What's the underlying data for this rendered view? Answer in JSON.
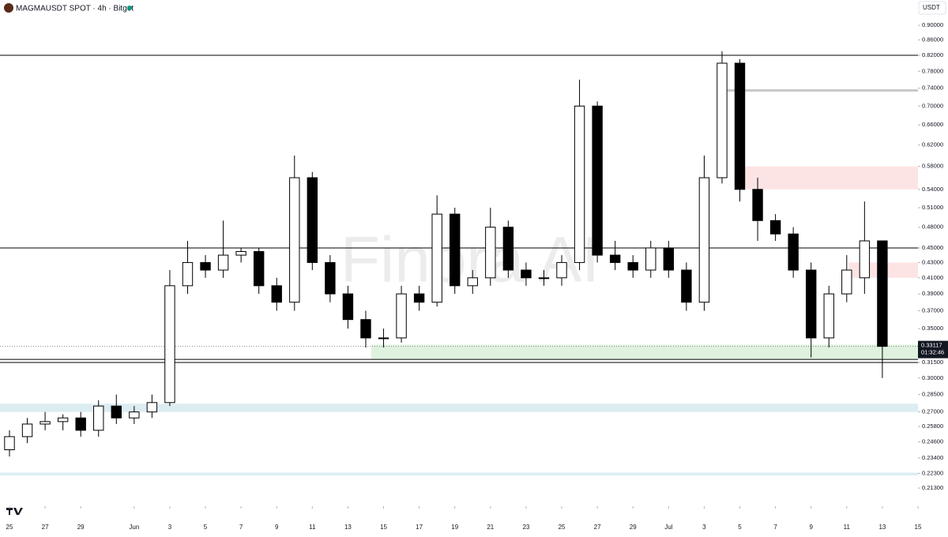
{
  "chart_data": {
    "type": "candlestick",
    "title": "MAGMAUSDT SPOT · 4h · Bitget",
    "currency": "USDT",
    "watermark": "Finora AI",
    "log_scale": true,
    "up_color": "#ffffff",
    "down_color": "#000000",
    "x": [
      0,
      1,
      2,
      3,
      4,
      5,
      6,
      7,
      8,
      9,
      10,
      11,
      12,
      13,
      14,
      15,
      16,
      17,
      18,
      19,
      20,
      21,
      22,
      23,
      24,
      25,
      26,
      27,
      28,
      29,
      30,
      31,
      32,
      33,
      34,
      35,
      36,
      37,
      38,
      39,
      40,
      41,
      42,
      43,
      44,
      45,
      46,
      47,
      48,
      49
    ],
    "open": [
      0.24,
      0.25,
      0.26,
      0.262,
      0.265,
      0.255,
      0.275,
      0.265,
      0.27,
      0.278,
      0.4,
      0.43,
      0.42,
      0.44,
      0.445,
      0.4,
      0.38,
      0.56,
      0.43,
      0.39,
      0.36,
      0.34,
      0.34,
      0.39,
      0.38,
      0.5,
      0.4,
      0.41,
      0.48,
      0.42,
      0.41,
      0.41,
      0.43,
      0.7,
      0.44,
      0.43,
      0.42,
      0.45,
      0.42,
      0.38,
      0.56,
      0.8,
      0.54,
      0.49,
      0.47,
      0.42,
      0.34,
      0.39,
      0.41,
      0.46
    ],
    "high": [
      0.255,
      0.265,
      0.27,
      0.268,
      0.27,
      0.28,
      0.285,
      0.275,
      0.285,
      0.42,
      0.46,
      0.44,
      0.49,
      0.45,
      0.45,
      0.41,
      0.6,
      0.57,
      0.44,
      0.4,
      0.37,
      0.35,
      0.4,
      0.4,
      0.53,
      0.51,
      0.42,
      0.51,
      0.49,
      0.43,
      0.42,
      0.44,
      0.76,
      0.71,
      0.46,
      0.44,
      0.46,
      0.46,
      0.43,
      0.6,
      0.83,
      0.81,
      0.56,
      0.5,
      0.48,
      0.43,
      0.4,
      0.44,
      0.52,
      0.46
    ],
    "low": [
      0.235,
      0.245,
      0.255,
      0.255,
      0.25,
      0.25,
      0.26,
      0.26,
      0.265,
      0.275,
      0.39,
      0.41,
      0.41,
      0.43,
      0.39,
      0.37,
      0.37,
      0.42,
      0.38,
      0.35,
      0.33,
      0.33,
      0.335,
      0.37,
      0.375,
      0.39,
      0.39,
      0.4,
      0.41,
      0.4,
      0.4,
      0.4,
      0.42,
      0.43,
      0.42,
      0.41,
      0.41,
      0.41,
      0.37,
      0.37,
      0.55,
      0.52,
      0.46,
      0.46,
      0.41,
      0.32,
      0.33,
      0.38,
      0.39,
      0.3
    ],
    "close": [
      0.25,
      0.26,
      0.262,
      0.265,
      0.255,
      0.275,
      0.265,
      0.27,
      0.278,
      0.4,
      0.43,
      0.42,
      0.44,
      0.445,
      0.4,
      0.38,
      0.56,
      0.43,
      0.39,
      0.36,
      0.34,
      0.34,
      0.39,
      0.38,
      0.5,
      0.4,
      0.41,
      0.48,
      0.42,
      0.41,
      0.41,
      0.43,
      0.7,
      0.44,
      0.43,
      0.42,
      0.45,
      0.42,
      0.38,
      0.56,
      0.8,
      0.54,
      0.49,
      0.47,
      0.42,
      0.34,
      0.39,
      0.42,
      0.46,
      0.33117
    ],
    "xlim": [
      -0.532,
      51.0
    ],
    "ylim": [
      0.2018,
      0.974
    ],
    "xticks": [
      {
        "value": 0,
        "label": "25"
      },
      {
        "value": 2,
        "label": "27"
      },
      {
        "value": 4,
        "label": "29"
      },
      {
        "value": 7,
        "label": "Jun"
      },
      {
        "value": 9,
        "label": "3"
      },
      {
        "value": 11,
        "label": "5"
      },
      {
        "value": 13,
        "label": "7"
      },
      {
        "value": 15,
        "label": "9"
      },
      {
        "value": 17,
        "label": "11"
      },
      {
        "value": 19,
        "label": "13"
      },
      {
        "value": 21,
        "label": "15"
      },
      {
        "value": 23,
        "label": "17"
      },
      {
        "value": 25,
        "label": "19"
      },
      {
        "value": 27,
        "label": "21"
      },
      {
        "value": 29,
        "label": "23"
      },
      {
        "value": 31,
        "label": "25"
      },
      {
        "value": 33,
        "label": "27"
      },
      {
        "value": 35,
        "label": "29"
      },
      {
        "value": 37,
        "label": "Jul"
      },
      {
        "value": 39,
        "label": "3"
      },
      {
        "value": 41,
        "label": "5"
      },
      {
        "value": 43,
        "label": "7"
      },
      {
        "value": 45,
        "label": "9"
      },
      {
        "value": 47,
        "label": "11"
      },
      {
        "value": 49,
        "label": "13"
      },
      {
        "value": 51,
        "label": "15"
      }
    ],
    "yticks": [
      {
        "value": 0.9,
        "label": "0.90000"
      },
      {
        "value": 0.86,
        "label": "0.86000"
      },
      {
        "value": 0.82,
        "label": "0.82000"
      },
      {
        "value": 0.78,
        "label": "0.78000"
      },
      {
        "value": 0.74,
        "label": "0.74000"
      },
      {
        "value": 0.7,
        "label": "0.70000"
      },
      {
        "value": 0.66,
        "label": "0.66000"
      },
      {
        "value": 0.62,
        "label": "0.62000"
      },
      {
        "value": 0.58,
        "label": "0.58000"
      },
      {
        "value": 0.54,
        "label": "0.54000"
      },
      {
        "value": 0.51,
        "label": "0.51000"
      },
      {
        "value": 0.48,
        "label": "0.48000"
      },
      {
        "value": 0.45,
        "label": "0.45000"
      },
      {
        "value": 0.43,
        "label": "0.43000"
      },
      {
        "value": 0.41,
        "label": "0.41000"
      },
      {
        "value": 0.39,
        "label": "0.39000"
      },
      {
        "value": 0.37,
        "label": "0.37000"
      },
      {
        "value": 0.35,
        "label": "0.35000"
      },
      {
        "value": 0.315,
        "label": "0.31500"
      },
      {
        "value": 0.3,
        "label": "0.30000"
      },
      {
        "value": 0.285,
        "label": "0.28500"
      },
      {
        "value": 0.27,
        "label": "0.27000"
      },
      {
        "value": 0.258,
        "label": "0.25800"
      },
      {
        "value": 0.246,
        "label": "0.24600"
      },
      {
        "value": 0.234,
        "label": "0.23400"
      },
      {
        "value": 0.223,
        "label": "0.22300"
      },
      {
        "value": 0.213,
        "label": "0.21300"
      }
    ],
    "hlines": [
      {
        "y": 0.82,
        "color": "#000000"
      },
      {
        "y": 0.45,
        "color": "#000000"
      },
      {
        "y": 0.318,
        "color": "#000000"
      },
      {
        "y": 0.315,
        "color": "#000000"
      }
    ],
    "rays": [
      {
        "y": 0.735,
        "x_start": 40.3,
        "color": "#c8c8c8"
      }
    ],
    "zones": [
      {
        "y_from": 0.54,
        "y_to": 0.58,
        "x_start": 40.9,
        "color": "#fde4e4"
      },
      {
        "y_from": 0.41,
        "y_to": 0.43,
        "x_start": 47.1,
        "color": "#fde4e4"
      },
      {
        "y_from": 0.318,
        "y_to": 0.333,
        "x_start": 20.3,
        "color": "#dff2df"
      },
      {
        "y_from": 0.27,
        "y_to": 0.277,
        "x_start": -0.532,
        "color": "#dcedf2"
      },
      {
        "y_from": 0.2215,
        "y_to": 0.2235,
        "x_start": -0.532,
        "color": "#dcedf2"
      }
    ],
    "price_line": {
      "value": 0.33117,
      "countdown": "01:32:46"
    }
  }
}
